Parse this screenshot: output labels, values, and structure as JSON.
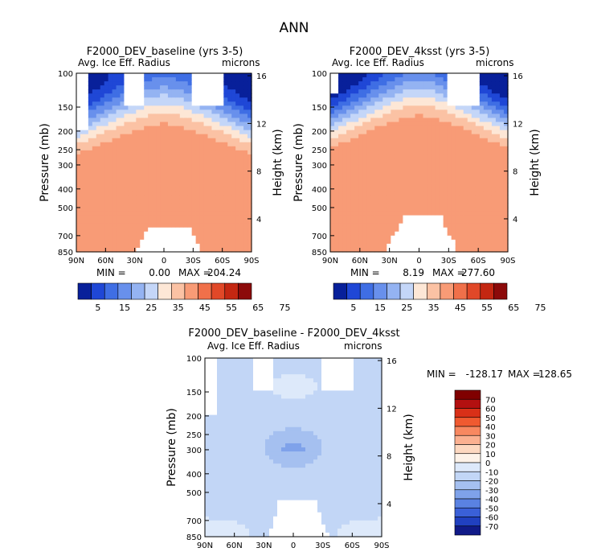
{
  "figure_title": "ANN",
  "chart_data": [
    {
      "type": "heatmap",
      "title": "F2000_DEV_baseline (yrs 3-5)",
      "variable": "Avg. Ice Eff. Radius",
      "units": "microns",
      "xlabel": "",
      "ylabel": "Pressure (mb)",
      "y2label": "Height (km)",
      "x_ticks": [
        "90N",
        "60N",
        "30N",
        "0",
        "30S",
        "60S",
        "90S"
      ],
      "y_ticks": [
        "100",
        "150",
        "200",
        "250",
        "300",
        "400",
        "500",
        "700",
        "850"
      ],
      "y2_ticks": [
        "16",
        "12",
        "8",
        "4"
      ],
      "stats": {
        "min_label": "MIN =",
        "min": "0.00",
        "max_label": "MAX =",
        "max": "204.24"
      },
      "colorbar_labels": [
        "5",
        "15",
        "25",
        "35",
        "45",
        "55",
        "65",
        "75"
      ]
    },
    {
      "type": "heatmap",
      "title": "F2000_DEV_4ksst (yrs 3-5)",
      "variable": "Avg. Ice Eff. Radius",
      "units": "microns",
      "xlabel": "",
      "ylabel": "Pressure (mb)",
      "y2label": "Height (km)",
      "x_ticks": [
        "90N",
        "60N",
        "30N",
        "0",
        "30S",
        "60S",
        "90S"
      ],
      "y_ticks": [
        "100",
        "150",
        "200",
        "250",
        "300",
        "400",
        "500",
        "700",
        "850"
      ],
      "y2_ticks": [
        "16",
        "12",
        "8",
        "4"
      ],
      "stats": {
        "min_label": "MIN =",
        "min": "8.19",
        "max_label": "MAX =",
        "max": "277.60"
      },
      "colorbar_labels": [
        "5",
        "15",
        "25",
        "35",
        "45",
        "55",
        "65",
        "75"
      ]
    },
    {
      "type": "heatmap",
      "title": "F2000_DEV_baseline - F2000_DEV_4ksst",
      "variable": "Avg. Ice Eff. Radius",
      "units": "microns",
      "xlabel": "",
      "ylabel": "Pressure (mb)",
      "y2label": "Height (km)",
      "x_ticks": [
        "90N",
        "60N",
        "30N",
        "0",
        "30S",
        "60S",
        "90S"
      ],
      "y_ticks": [
        "100",
        "150",
        "200",
        "250",
        "300",
        "400",
        "500",
        "700",
        "850"
      ],
      "y2_ticks": [
        "16",
        "12",
        "8",
        "4"
      ],
      "stats": {
        "min_label": "MIN =",
        "min": "-128.17",
        "max_label": "MAX =",
        "max": "128.65"
      },
      "colorbar_labels": [
        "70",
        "60",
        "50",
        "40",
        "30",
        "20",
        "10",
        "0",
        "-10",
        "-20",
        "-30",
        "-40",
        "-50",
        "-60",
        "-70"
      ]
    }
  ],
  "colors": {
    "abs_scale": [
      "#08209a",
      "#1f47d6",
      "#3f6ee4",
      "#6890ec",
      "#94b3f2",
      "#c4d6f8",
      "#fde7d6",
      "#fbc2a4",
      "#f89b76",
      "#f0704a",
      "#e14828",
      "#c42712",
      "#8c0a0a"
    ],
    "diff_scale": [
      "#800000",
      "#b31010",
      "#d93018",
      "#f05a30",
      "#f88860",
      "#fbb090",
      "#fdd8c0",
      "#fdf2e8",
      "#dde9fa",
      "#c2d6f6",
      "#a5c0f0",
      "#7fa2ea",
      "#5a82e2",
      "#3a60d8",
      "#2040c0",
      "#101a88"
    ],
    "white_fill": "#ffffff"
  }
}
